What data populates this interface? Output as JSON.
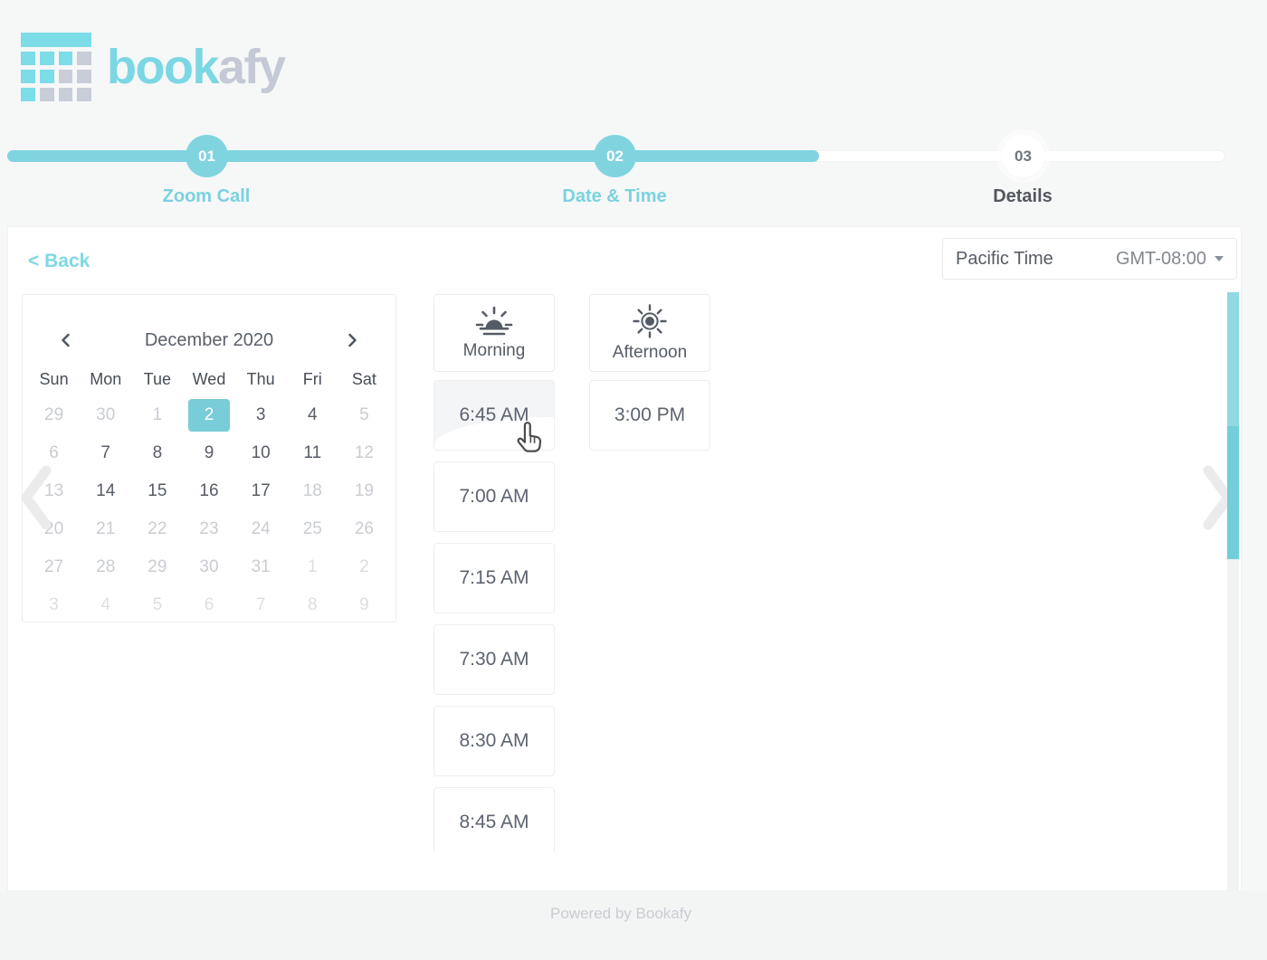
{
  "brand": {
    "name_primary": "book",
    "name_secondary": "afy"
  },
  "stepper": {
    "steps": [
      {
        "number": "01",
        "label": "Zoom Call",
        "state": "complete"
      },
      {
        "number": "02",
        "label": "Date & Time",
        "state": "active"
      },
      {
        "number": "03",
        "label": "Details",
        "state": "upcoming"
      }
    ]
  },
  "toolbar": {
    "back_label": "< Back",
    "timezone_name": "Pacific Time",
    "timezone_offset": "GMT-08:00"
  },
  "calendar": {
    "title": "December 2020",
    "weekdays": [
      "Sun",
      "Mon",
      "Tue",
      "Wed",
      "Thu",
      "Fri",
      "Sat"
    ],
    "weeks": [
      [
        {
          "d": "29",
          "s": "muted"
        },
        {
          "d": "30",
          "s": "muted"
        },
        {
          "d": "1",
          "s": "muted"
        },
        {
          "d": "2",
          "s": "sel"
        },
        {
          "d": "3",
          "s": "avail"
        },
        {
          "d": "4",
          "s": "avail"
        },
        {
          "d": "5",
          "s": "muted"
        }
      ],
      [
        {
          "d": "6",
          "s": "muted"
        },
        {
          "d": "7",
          "s": "avail"
        },
        {
          "d": "8",
          "s": "avail"
        },
        {
          "d": "9",
          "s": "avail"
        },
        {
          "d": "10",
          "s": "avail"
        },
        {
          "d": "11",
          "s": "avail"
        },
        {
          "d": "12",
          "s": "muted"
        }
      ],
      [
        {
          "d": "13",
          "s": "muted"
        },
        {
          "d": "14",
          "s": "avail"
        },
        {
          "d": "15",
          "s": "avail"
        },
        {
          "d": "16",
          "s": "avail"
        },
        {
          "d": "17",
          "s": "avail"
        },
        {
          "d": "18",
          "s": "muted"
        },
        {
          "d": "19",
          "s": "muted"
        }
      ],
      [
        {
          "d": "20",
          "s": "muted"
        },
        {
          "d": "21",
          "s": "muted"
        },
        {
          "d": "22",
          "s": "muted"
        },
        {
          "d": "23",
          "s": "muted"
        },
        {
          "d": "24",
          "s": "muted"
        },
        {
          "d": "25",
          "s": "muted"
        },
        {
          "d": "26",
          "s": "muted"
        }
      ],
      [
        {
          "d": "27",
          "s": "muted"
        },
        {
          "d": "28",
          "s": "muted"
        },
        {
          "d": "29",
          "s": "muted"
        },
        {
          "d": "30",
          "s": "muted"
        },
        {
          "d": "31",
          "s": "muted"
        },
        {
          "d": "1",
          "s": "faint"
        },
        {
          "d": "2",
          "s": "faint"
        }
      ],
      [
        {
          "d": "3",
          "s": "faint"
        },
        {
          "d": "4",
          "s": "faint"
        },
        {
          "d": "5",
          "s": "faint"
        },
        {
          "d": "6",
          "s": "faint"
        },
        {
          "d": "7",
          "s": "faint"
        },
        {
          "d": "8",
          "s": "faint"
        },
        {
          "d": "9",
          "s": "faint"
        }
      ]
    ]
  },
  "times": {
    "morning_label": "Morning",
    "afternoon_label": "Afternoon",
    "morning_slots": [
      {
        "t": "6:45 AM",
        "hover": true
      },
      {
        "t": "7:00 AM"
      },
      {
        "t": "7:15 AM"
      },
      {
        "t": "7:30 AM"
      },
      {
        "t": "8:30 AM"
      },
      {
        "t": "8:45 AM"
      }
    ],
    "afternoon_slots": [
      {
        "t": "3:00 PM"
      }
    ]
  },
  "footer": {
    "text": "Powered by Bookafy"
  },
  "icons": {
    "morning": "sunrise-icon",
    "afternoon": "sun-icon",
    "timezone": "caret-down-icon",
    "calendar_nav": [
      "chevron-left-icon",
      "chevron-right-icon"
    ],
    "page_nav": [
      "big-chevron-left-icon",
      "big-chevron-right-icon"
    ],
    "pointer": "hand-cursor-icon"
  },
  "colors": {
    "accent_teal": "#7cd3df",
    "brand_teal": "#7bd7e4",
    "brand_gray": "#c4c9d5",
    "selected_day": "#79cdd9",
    "scrollbar_light": "#90d9e3",
    "scrollbar_dark": "#73cedb",
    "page_bg": "#f6f7f7",
    "card_bg": "#ffffff"
  }
}
